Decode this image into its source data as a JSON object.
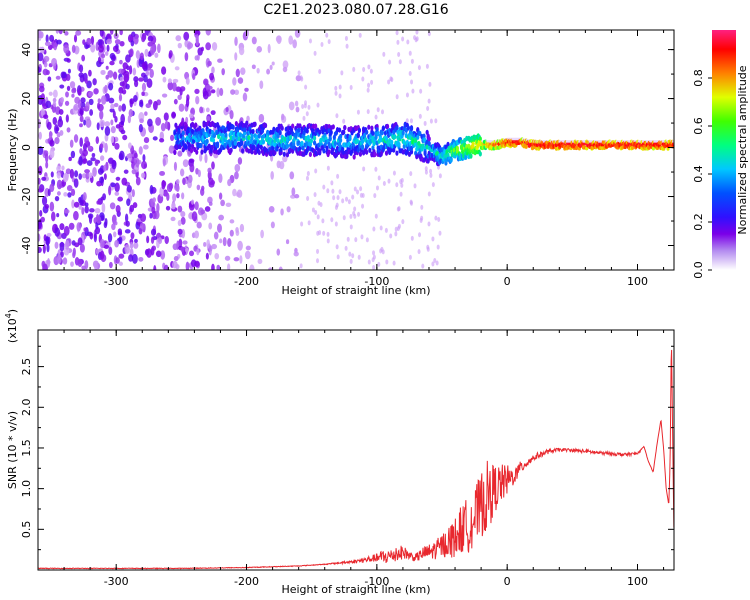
{
  "figure_title": "C2E1.2023.080.07.28.G16",
  "chart_data": [
    {
      "type": "heatmap",
      "xlabel": "Height of straight line (km)",
      "ylabel": "Frequency (Hz)",
      "xlim": [
        -360,
        128
      ],
      "ylim": [
        -50,
        48
      ],
      "xticks": [
        -300,
        -200,
        -100,
        0,
        100
      ],
      "yticks": [
        -40,
        -20,
        0,
        20,
        40
      ],
      "xtick_labels": [
        "-300",
        "-200",
        "-100",
        "0",
        "100"
      ],
      "ytick_labels": [
        "-40",
        "-20",
        "0",
        "20",
        "40"
      ],
      "colorbar": {
        "label": "Normalized spectral amplitude",
        "range": [
          0,
          1
        ],
        "ticks": [
          0,
          0.2,
          0.4,
          0.6,
          0.8
        ],
        "tick_labels": [
          "0.0",
          "0.2",
          "0.4",
          "0.6",
          "0.8"
        ],
        "colormap": [
          "#ffffff",
          "#7b00e8",
          "#1a1aff",
          "#00c8ff",
          "#00ff40",
          "#e0ff00",
          "#ff8000",
          "#ff0000",
          "#ff2080"
        ]
      },
      "ridge": {
        "x": [
          -250,
          -220,
          -200,
          -180,
          -160,
          -140,
          -120,
          -100,
          -90,
          -80,
          -70,
          -60,
          -55,
          -50,
          -45,
          -40,
          -30,
          -20,
          -10,
          0,
          10,
          20,
          50,
          100,
          128
        ],
        "frequency": [
          4,
          4,
          4,
          3,
          3,
          3,
          2,
          3,
          3,
          4,
          2,
          0,
          -2,
          -4,
          -2,
          -1,
          0,
          1,
          1,
          2,
          2,
          1,
          1,
          1,
          1
        ],
        "amplitude": [
          0.35,
          0.4,
          0.4,
          0.4,
          0.4,
          0.4,
          0.38,
          0.4,
          0.42,
          0.45,
          0.45,
          0.4,
          0.42,
          0.45,
          0.5,
          0.55,
          0.62,
          0.7,
          0.8,
          0.85,
          0.88,
          0.9,
          0.9,
          0.9,
          0.88
        ]
      }
    },
    {
      "type": "line",
      "xlabel": "Height of straight line (km)",
      "ylabel": "SNR (10 * v/v)",
      "y_scale_label": "(x10",
      "y_scale_exp": "4",
      "xlim": [
        -360,
        128
      ],
      "ylim": [
        0,
        2.95
      ],
      "xticks": [
        -300,
        -200,
        -100,
        0,
        100
      ],
      "yticks": [
        0.5,
        1.0,
        1.5,
        2.0,
        2.5
      ],
      "xtick_labels": [
        "-300",
        "-200",
        "-100",
        "0",
        "100"
      ],
      "ytick_labels": [
        "0.5",
        "1.0",
        "1.5",
        "2.0",
        "2.5"
      ],
      "line_color": "#e8282e",
      "series": [
        {
          "x": [
            -360,
            -300,
            -250,
            -200,
            -180,
            -160,
            -150,
            -140,
            -120,
            -110,
            -100,
            -95,
            -90,
            -85,
            -80,
            -75,
            -70,
            -65,
            -60,
            -55,
            -50,
            -45,
            -40,
            -35,
            -30,
            -25,
            -20,
            -15,
            -10,
            -5,
            0,
            5,
            10,
            15,
            20,
            30,
            40,
            50,
            60,
            70,
            80,
            90,
            100,
            105,
            108,
            112,
            115,
            118,
            120,
            122,
            124,
            125,
            126,
            127,
            128
          ],
          "y": [
            0.02,
            0.02,
            0.02,
            0.03,
            0.04,
            0.05,
            0.06,
            0.07,
            0.1,
            0.12,
            0.15,
            0.16,
            0.17,
            0.2,
            0.22,
            0.18,
            0.15,
            0.2,
            0.22,
            0.25,
            0.3,
            0.35,
            0.4,
            0.5,
            0.55,
            0.65,
            0.8,
            0.9,
            1.0,
            1.05,
            1.1,
            1.15,
            1.25,
            1.32,
            1.38,
            1.45,
            1.48,
            1.47,
            1.46,
            1.44,
            1.43,
            1.42,
            1.43,
            1.52,
            1.35,
            1.2,
            1.55,
            1.85,
            1.5,
            1.0,
            0.8,
            1.3,
            2.9,
            1.6,
            0.4
          ],
          "noise_amplitude": [
            0,
            0,
            0,
            0,
            0,
            0,
            0,
            0,
            0.02,
            0.03,
            0.05,
            0.1,
            0.08,
            0.12,
            0.08,
            0.06,
            0.05,
            0.08,
            0.1,
            0.12,
            0.15,
            0.2,
            0.25,
            0.3,
            0.35,
            0.35,
            0.4,
            0.45,
            0.3,
            0.25,
            0.2,
            0.1,
            0.08,
            0.06,
            0.04,
            0.03,
            0.02,
            0.02,
            0.02,
            0.02,
            0.02,
            0.02,
            0.02,
            0,
            0,
            0,
            0,
            0,
            0,
            0,
            0,
            0,
            0,
            0,
            0
          ]
        }
      ]
    }
  ]
}
